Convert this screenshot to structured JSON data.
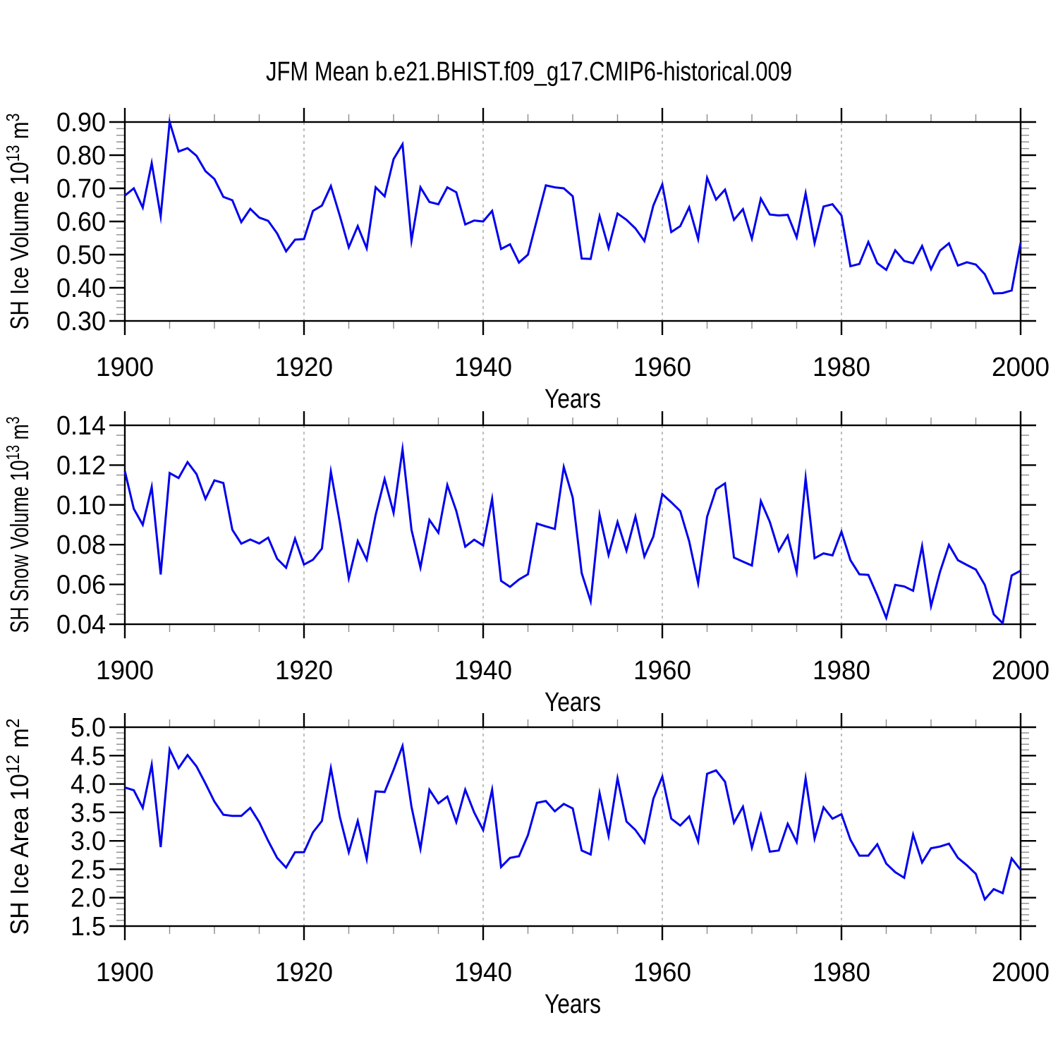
{
  "page": {
    "title": "JFM Mean b.e21.BHIST.f09_g17.CMIP6-historical.009",
    "background": "#ffffff",
    "text_color": "#000000",
    "gridline_color": "#999999",
    "minor_tick_color": "#8c8c8c"
  },
  "chart_data": [
    {
      "type": "line",
      "name": "sh-ice-volume",
      "ylabel_runs": [
        [
          "SH Ice Volume 10",
          "n"
        ],
        [
          "13",
          "sup"
        ],
        [
          " m",
          "n"
        ],
        [
          "3",
          "sup"
        ]
      ],
      "xlabel": "Years",
      "x_start": 1900,
      "x_step": 1,
      "xlim": [
        1900,
        2000
      ],
      "ylim": [
        0.3,
        0.9
      ],
      "x_major_ticks": [
        1900,
        1920,
        1940,
        1960,
        1980,
        2000
      ],
      "x_tick_labels": [
        "1900",
        "1920",
        "1940",
        "1960",
        "1980",
        "2000"
      ],
      "x_minor_step": 5,
      "gridline_years": [
        1920,
        1940,
        1960,
        1980
      ],
      "y_major_ticks": [
        0.9,
        0.8,
        0.7,
        0.6,
        0.5,
        0.4,
        0.3
      ],
      "y_tick_labels": [
        "0.90",
        "0.80",
        "0.70",
        "0.60",
        "0.50",
        "0.40",
        "0.30"
      ],
      "y_minor_step": 0.02,
      "grid": "vertical-dashed",
      "legend": "none",
      "line_color": "#0000EE",
      "values": [
        0.678,
        0.7,
        0.642,
        0.776,
        0.615,
        0.9,
        0.811,
        0.821,
        0.798,
        0.752,
        0.728,
        0.674,
        0.664,
        0.598,
        0.638,
        0.612,
        0.602,
        0.564,
        0.51,
        0.545,
        0.547,
        0.632,
        0.648,
        0.707,
        0.617,
        0.522,
        0.586,
        0.519,
        0.703,
        0.676,
        0.788,
        0.833,
        0.542,
        0.703,
        0.659,
        0.652,
        0.703,
        0.688,
        0.591,
        0.603,
        0.6,
        0.632,
        0.517,
        0.531,
        0.476,
        0.5,
        0.605,
        0.709,
        0.703,
        0.7,
        0.676,
        0.488,
        0.487,
        0.616,
        0.52,
        0.624,
        0.605,
        0.579,
        0.541,
        0.648,
        0.712,
        0.568,
        0.586,
        0.643,
        0.547,
        0.732,
        0.666,
        0.696,
        0.605,
        0.637,
        0.548,
        0.669,
        0.621,
        0.618,
        0.62,
        0.552,
        0.685,
        0.535,
        0.645,
        0.652,
        0.618,
        0.465,
        0.472,
        0.538,
        0.474,
        0.454,
        0.513,
        0.481,
        0.474,
        0.526,
        0.456,
        0.512,
        0.534,
        0.467,
        0.477,
        0.47,
        0.441,
        0.383,
        0.384,
        0.392,
        0.536
      ]
    },
    {
      "type": "line",
      "name": "sh-snow-volume",
      "ylabel_runs": [
        [
          "SH Snow Volume 10",
          "n"
        ],
        [
          "13",
          "sup"
        ],
        [
          " m",
          "n"
        ],
        [
          "3",
          "sup"
        ]
      ],
      "xlabel": "Years",
      "x_start": 1900,
      "x_step": 1,
      "xlim": [
        1900,
        2000
      ],
      "ylim": [
        0.04,
        0.14
      ],
      "x_major_ticks": [
        1900,
        1920,
        1940,
        1960,
        1980,
        2000
      ],
      "x_tick_labels": [
        "1900",
        "1920",
        "1940",
        "1960",
        "1980",
        "2000"
      ],
      "x_minor_step": 5,
      "gridline_years": [
        1920,
        1940,
        1960,
        1980
      ],
      "y_major_ticks": [
        0.14,
        0.12,
        0.1,
        0.08,
        0.06,
        0.04
      ],
      "y_tick_labels": [
        "0.14",
        "0.12",
        "0.10",
        "0.08",
        "0.06",
        "0.04"
      ],
      "y_minor_step": 0.005,
      "grid": "vertical-dashed",
      "legend": "none",
      "line_color": "#0000EE",
      "values": [
        0.117,
        0.098,
        0.09,
        0.109,
        0.065,
        0.116,
        0.1135,
        0.1215,
        0.1155,
        0.103,
        0.1123,
        0.111,
        0.0875,
        0.0805,
        0.0826,
        0.0806,
        0.0835,
        0.0729,
        0.0684,
        0.083,
        0.07,
        0.0724,
        0.078,
        0.1167,
        0.0912,
        0.0631,
        0.0818,
        0.0724,
        0.095,
        0.113,
        0.096,
        0.128,
        0.0875,
        0.0685,
        0.0925,
        0.086,
        0.11,
        0.097,
        0.079,
        0.0825,
        0.0796,
        0.103,
        0.0618,
        0.0588,
        0.0625,
        0.0651,
        0.0906,
        0.0892,
        0.0879,
        0.119,
        0.1036,
        0.0657,
        0.0515,
        0.095,
        0.0748,
        0.0914,
        0.077,
        0.0941,
        0.074,
        0.0841,
        0.1054,
        0.1013,
        0.0969,
        0.0817,
        0.0606,
        0.094,
        0.1078,
        0.1108,
        0.0735,
        0.0715,
        0.0695,
        0.1019,
        0.0915,
        0.0768,
        0.0845,
        0.0661,
        0.1135,
        0.0732,
        0.0756,
        0.0746,
        0.0865,
        0.0722,
        0.0651,
        0.0648,
        0.0545,
        0.0432,
        0.0598,
        0.059,
        0.0568,
        0.0793,
        0.0491,
        0.0663,
        0.0799,
        0.0722,
        0.0698,
        0.0675,
        0.0598,
        0.045,
        0.0405,
        0.0645,
        0.0669
      ]
    },
    {
      "type": "line",
      "name": "sh-ice-area",
      "ylabel_runs": [
        [
          "SH Ice Area 10",
          "n"
        ],
        [
          "12",
          "sup"
        ],
        [
          " m",
          "n"
        ],
        [
          "2",
          "sup"
        ]
      ],
      "xlabel": "Years",
      "x_start": 1900,
      "x_step": 1,
      "xlim": [
        1900,
        2000
      ],
      "ylim": [
        1.5,
        5.0
      ],
      "x_major_ticks": [
        1900,
        1920,
        1940,
        1960,
        1980,
        2000
      ],
      "x_tick_labels": [
        "1900",
        "1920",
        "1940",
        "1960",
        "1980",
        "2000"
      ],
      "x_minor_step": 5,
      "gridline_years": [
        1920,
        1940,
        1960,
        1980
      ],
      "y_major_ticks": [
        5.0,
        4.5,
        4.0,
        3.5,
        3.0,
        2.5,
        2.0,
        1.5
      ],
      "y_tick_labels": [
        "5.0",
        "4.5",
        "4.0",
        "3.5",
        "3.0",
        "2.5",
        "2.0",
        "1.5"
      ],
      "y_minor_step": 0.1,
      "grid": "vertical-dashed",
      "legend": "none",
      "line_color": "#0000EE",
      "values": [
        3.94,
        3.89,
        3.58,
        4.34,
        2.89,
        4.61,
        4.28,
        4.51,
        4.31,
        4.01,
        3.69,
        3.46,
        3.44,
        3.44,
        3.58,
        3.33,
        3.0,
        2.7,
        2.53,
        2.8,
        2.8,
        3.15,
        3.35,
        4.28,
        3.42,
        2.8,
        3.35,
        2.68,
        3.87,
        3.86,
        4.25,
        4.67,
        3.6,
        2.86,
        3.9,
        3.66,
        3.78,
        3.33,
        3.9,
        3.5,
        3.19,
        3.9,
        2.54,
        2.7,
        2.73,
        3.1,
        3.67,
        3.7,
        3.52,
        3.65,
        3.57,
        2.83,
        2.76,
        3.84,
        3.09,
        4.1,
        3.34,
        3.19,
        2.97,
        3.74,
        4.13,
        3.39,
        3.27,
        3.43,
        2.99,
        4.18,
        4.24,
        4.04,
        3.32,
        3.6,
        2.88,
        3.46,
        2.81,
        2.83,
        3.3,
        2.98,
        4.1,
        3.04,
        3.59,
        3.39,
        3.47,
        3.02,
        2.74,
        2.74,
        2.94,
        2.6,
        2.45,
        2.35,
        3.11,
        2.62,
        2.87,
        2.9,
        2.95,
        2.7,
        2.57,
        2.42,
        1.97,
        2.15,
        2.08,
        2.69,
        2.49
      ]
    }
  ]
}
